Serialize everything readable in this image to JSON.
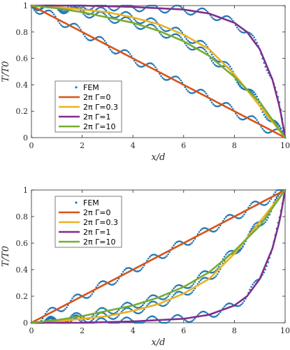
{
  "colors": {
    "fem": "#1f77b4",
    "g0": "#d95319",
    "g03": "#edb120",
    "g1": "#7e2f8e",
    "g10": "#77ac30",
    "axis": "#262626"
  },
  "chart_data": [
    {
      "type": "line",
      "xlabel": "x/d",
      "ylabel": "T/T0",
      "xlim": [
        0,
        10
      ],
      "ylim": [
        0,
        1
      ],
      "xticks": [
        "0",
        "2",
        "4",
        "6",
        "8",
        "10"
      ],
      "yticks": [
        "0",
        "0.2",
        "0.4",
        "0.6",
        "0.8",
        "1"
      ],
      "grid": false,
      "legend_position": "lower-left",
      "legend": [
        "FEM",
        "2π Γ=0",
        "2π Γ=0.3",
        "2π Γ=1",
        "2π Γ=10"
      ],
      "series": [
        {
          "name": "2π Γ=0",
          "x": [
            0,
            10
          ],
          "y": [
            1,
            0
          ]
        },
        {
          "name": "2π Γ=0.3",
          "x": [
            0,
            1,
            2,
            3,
            4,
            5,
            6,
            7,
            8,
            8.5,
            9,
            9.5,
            10
          ],
          "y": [
            1,
            0.99,
            0.97,
            0.95,
            0.91,
            0.86,
            0.78,
            0.67,
            0.48,
            0.36,
            0.24,
            0.12,
            0
          ]
        },
        {
          "name": "2π Γ=1",
          "x": [
            0,
            2,
            4,
            6,
            7,
            8,
            8.5,
            9,
            9.5,
            9.8,
            10
          ],
          "y": [
            1,
            1,
            0.99,
            0.97,
            0.94,
            0.87,
            0.8,
            0.67,
            0.44,
            0.22,
            0
          ]
        },
        {
          "name": "2π Γ=10",
          "x": [
            0,
            1,
            2,
            3,
            4,
            5,
            6,
            7,
            8,
            9,
            10
          ],
          "y": [
            1,
            0.98,
            0.95,
            0.91,
            0.87,
            0.81,
            0.73,
            0.62,
            0.46,
            0.27,
            0
          ]
        },
        {
          "name": "FEM",
          "style": "dots",
          "profiles": [
            "linear",
            "gamma=0.3",
            "gamma=1",
            "gamma=10"
          ]
        }
      ]
    },
    {
      "type": "line",
      "xlabel": "x/d",
      "ylabel": "T/T0",
      "xlim": [
        0,
        10
      ],
      "ylim": [
        0,
        1
      ],
      "xticks": [
        "0",
        "2",
        "4",
        "6",
        "8",
        "10"
      ],
      "yticks": [
        "0",
        "0.2",
        "0.4",
        "0.6",
        "0.8",
        "1"
      ],
      "grid": false,
      "legend_position": "upper-left",
      "legend": [
        "FEM",
        "2π Γ=0",
        "2π Γ=0.3",
        "2π Γ=1",
        "2π Γ=10"
      ],
      "series": [
        {
          "name": "2π Γ=0",
          "x": [
            0,
            10
          ],
          "y": [
            0,
            1
          ]
        },
        {
          "name": "2π Γ=0.3",
          "x": [
            0,
            1,
            2,
            3,
            4,
            5,
            6,
            7,
            8,
            8.5,
            9,
            9.5,
            10
          ],
          "y": [
            0,
            0.01,
            0.03,
            0.05,
            0.09,
            0.14,
            0.22,
            0.33,
            0.52,
            0.64,
            0.76,
            0.88,
            1
          ]
        },
        {
          "name": "2π Γ=1",
          "x": [
            0,
            2,
            4,
            6,
            7,
            8,
            8.5,
            9,
            9.5,
            9.8,
            10
          ],
          "y": [
            0,
            0,
            0.01,
            0.03,
            0.06,
            0.13,
            0.2,
            0.33,
            0.56,
            0.78,
            1
          ]
        },
        {
          "name": "2π Γ=10",
          "x": [
            0,
            1,
            2,
            3,
            4,
            5,
            6,
            7,
            8,
            9,
            10
          ],
          "y": [
            0,
            0.02,
            0.05,
            0.09,
            0.13,
            0.19,
            0.27,
            0.38,
            0.54,
            0.73,
            1
          ]
        },
        {
          "name": "FEM",
          "style": "dots",
          "profiles": [
            "linear",
            "gamma=0.3",
            "gamma=1",
            "gamma=10"
          ]
        }
      ]
    }
  ]
}
